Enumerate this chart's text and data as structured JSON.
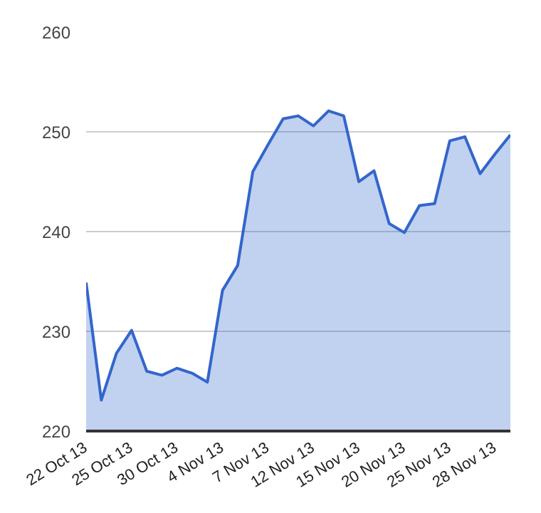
{
  "chart_data": {
    "type": "area",
    "categories": [
      "22 Oct 13",
      null,
      null,
      "25 Oct 13",
      null,
      null,
      "30 Oct 13",
      null,
      null,
      "4 Nov 13",
      null,
      null,
      "7 Nov 13",
      null,
      null,
      "12 Nov 13",
      null,
      null,
      "15 Nov 13",
      null,
      null,
      "20 Nov 13",
      null,
      null,
      "25 Nov 13",
      null,
      null,
      "28 Nov 13",
      null
    ],
    "series": [
      {
        "color": "#3366cc",
        "values": [
          234.9,
          223.1,
          227.8,
          230.1,
          226.0,
          225.6,
          226.3,
          225.8,
          224.9,
          234.1,
          236.6,
          246.0,
          248.7,
          251.3,
          251.6,
          250.6,
          252.1,
          251.6,
          245.0,
          246.1,
          240.8,
          239.9,
          242.6,
          242.8,
          249.1,
          249.5,
          245.8,
          247.8,
          249.7
        ]
      }
    ],
    "ylim": [
      220,
      260
    ],
    "yticks": [
      220,
      230,
      240,
      250,
      260
    ],
    "grid": "y"
  }
}
